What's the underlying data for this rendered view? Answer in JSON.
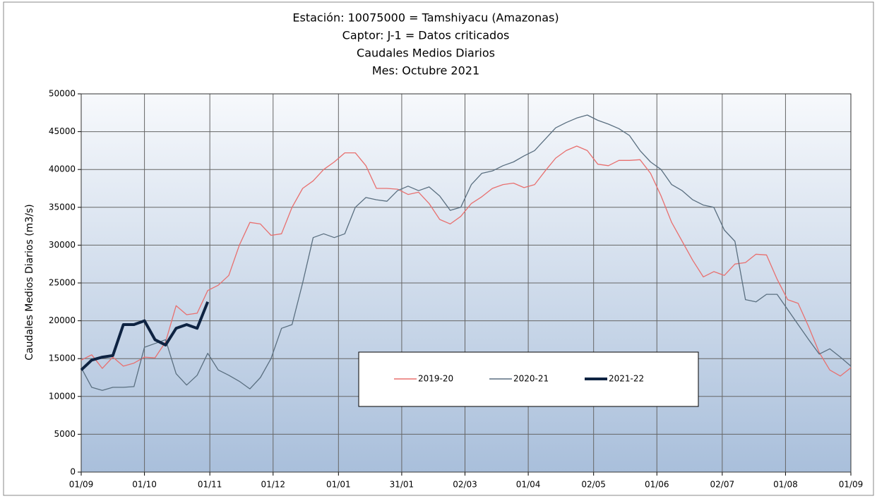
{
  "chart_data": {
    "type": "line",
    "title": [
      "Estación: 10075000 = Tamshiyacu    (Amazonas)",
      "Captor: J-1 = Datos criticados",
      "Caudales Medios Diarios",
      "Mes: Octubre 2021"
    ],
    "y_label": "Caudales Medios Diarios (m3/s)",
    "x": [
      0,
      5,
      10,
      15,
      20,
      25,
      30,
      35,
      40,
      45,
      50,
      55,
      60,
      65,
      70,
      75,
      80,
      85,
      90,
      95,
      100,
      105,
      110,
      115,
      120,
      125,
      130,
      135,
      140,
      145,
      150,
      155,
      160,
      165,
      170,
      175,
      180,
      185,
      190,
      195,
      200,
      205,
      210,
      215,
      220,
      225,
      230,
      235,
      240,
      245,
      250,
      255,
      260,
      265,
      270,
      275,
      280,
      285,
      290,
      295,
      300,
      305,
      310,
      315,
      320,
      325,
      330,
      335,
      340,
      345,
      350,
      355,
      360,
      365
    ],
    "series": [
      {
        "name": "2019-20",
        "color": "#e8706f",
        "values": [
          14800,
          15500,
          13700,
          15200,
          14000,
          14400,
          15200,
          15100,
          17200,
          22000,
          20800,
          21000,
          24000,
          24700,
          26000,
          30000,
          33000,
          32800,
          31300,
          31500,
          35000,
          37500,
          38500,
          40000,
          41000,
          42200,
          42200,
          40500,
          37500,
          37500,
          37400,
          36700,
          37000,
          35500,
          33400,
          32800,
          33800,
          35500,
          36400,
          37500,
          38000,
          38200,
          37600,
          38000,
          39800,
          41500,
          42500,
          43100,
          42500,
          40700,
          40500,
          41200,
          41200,
          41300,
          39500,
          36500,
          33000,
          30500,
          28000,
          25800,
          26500,
          26000,
          27500,
          27700,
          28800,
          28700,
          25500,
          22800,
          22300,
          19200,
          15800,
          13500,
          12700,
          13800
        ]
      },
      {
        "name": "2020-21",
        "color": "#5a6f80",
        "values": [
          13800,
          11200,
          10800,
          11200,
          11200,
          11300,
          16500,
          17000,
          17500,
          13000,
          11500,
          12800,
          15700,
          13500,
          12800,
          12000,
          11000,
          12500,
          15000,
          19000,
          19500,
          25000,
          31000,
          31500,
          31000,
          31500,
          35000,
          36300,
          36000,
          35800,
          37200,
          37800,
          37200,
          37700,
          36500,
          34600,
          35000,
          38000,
          39500,
          39800,
          40500,
          41000,
          41800,
          42500,
          44000,
          45500,
          46200,
          46800,
          47200,
          46500,
          46000,
          45400,
          44500,
          42500,
          41000,
          40000,
          38000,
          37200,
          36000,
          35300,
          35000,
          32000,
          30500,
          22800,
          22500,
          23500,
          23500,
          21500,
          19500,
          17500,
          15600,
          16300,
          15200,
          14000
        ]
      },
      {
        "name": "2021-22",
        "color": "#0e2342",
        "values": [
          13500,
          14800,
          15200,
          15400,
          19500,
          19500,
          20000,
          17500,
          16800,
          19000,
          19500,
          19000,
          22500,
          null,
          null,
          null,
          null,
          null,
          null,
          null,
          null,
          null,
          null,
          null,
          null,
          null,
          null,
          null,
          null,
          null,
          null,
          null,
          null,
          null,
          null,
          null,
          null,
          null,
          null,
          null,
          null,
          null,
          null,
          null,
          null,
          null,
          null,
          null,
          null,
          null,
          null,
          null,
          null,
          null,
          null,
          null,
          null,
          null,
          null,
          null,
          null,
          null,
          null,
          null,
          null,
          null,
          null,
          null,
          null,
          null,
          null,
          null,
          null,
          null
        ]
      }
    ],
    "xlim": [
      0,
      365
    ],
    "xticks": [
      {
        "value": 0,
        "label": "01/09"
      },
      {
        "value": 30,
        "label": "01/10"
      },
      {
        "value": 61,
        "label": "01/11"
      },
      {
        "value": 91,
        "label": "01/12"
      },
      {
        "value": 122,
        "label": "01/01"
      },
      {
        "value": 152,
        "label": "31/01"
      },
      {
        "value": 182,
        "label": "02/03"
      },
      {
        "value": 212,
        "label": "01/04"
      },
      {
        "value": 243,
        "label": "02/05"
      },
      {
        "value": 273,
        "label": "01/06"
      },
      {
        "value": 304,
        "label": "02/07"
      },
      {
        "value": 334,
        "label": "01/08"
      },
      {
        "value": 365,
        "label": "01/09"
      }
    ],
    "ylim": [
      0,
      50000
    ],
    "yticks": [
      0,
      5000,
      10000,
      15000,
      20000,
      25000,
      30000,
      35000,
      40000,
      45000,
      50000
    ],
    "grid": true
  }
}
